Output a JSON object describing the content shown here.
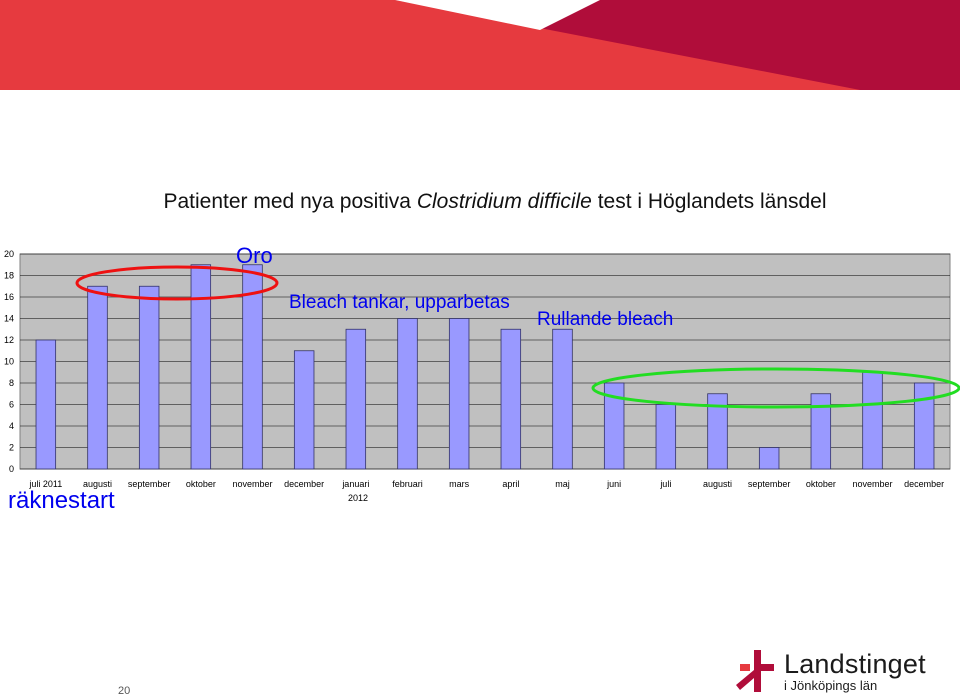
{
  "colors": {
    "header_red": "#e63a3f",
    "header_dark": "#b00d3a",
    "plot_bg": "#c0c0c0",
    "bar_fill": "#9999ff",
    "bar_stroke": "#333366",
    "red_oval": "#ee1111",
    "green_oval": "#22dd22",
    "annotation_text": "#0000ee"
  },
  "chart_data": {
    "type": "bar",
    "title_parts": [
      "Patienter med nya positiva ",
      "Clostridium difficile",
      " test i Höglandets länsdel"
    ],
    "categories": [
      "juli 2011",
      "augusti",
      "september",
      "oktober",
      "november",
      "december",
      "januari",
      "februari",
      "mars",
      "april",
      "maj",
      "juni",
      "juli",
      "augusti",
      "september",
      "oktober",
      "november",
      "december"
    ],
    "year_label": "2012",
    "values": [
      12,
      17,
      17,
      19,
      19,
      11,
      13,
      14,
      14,
      13,
      13,
      8,
      6,
      7,
      2,
      7,
      9,
      8
    ],
    "ylim": [
      0,
      20
    ],
    "yticks": [
      0,
      2,
      4,
      6,
      8,
      10,
      12,
      14,
      16,
      18,
      20
    ],
    "grid": true,
    "legend": "none",
    "annotations": [
      "Oro",
      "Bleach tankar, upparbetas",
      "Rullande bleach"
    ],
    "highlight_red_categories": [
      1,
      4
    ],
    "highlight_green_categories": [
      11,
      17
    ]
  },
  "side_label": "räknestart",
  "slide_number": "20",
  "logo": {
    "name": "Landstinget",
    "sub": "i Jönköpings län"
  }
}
